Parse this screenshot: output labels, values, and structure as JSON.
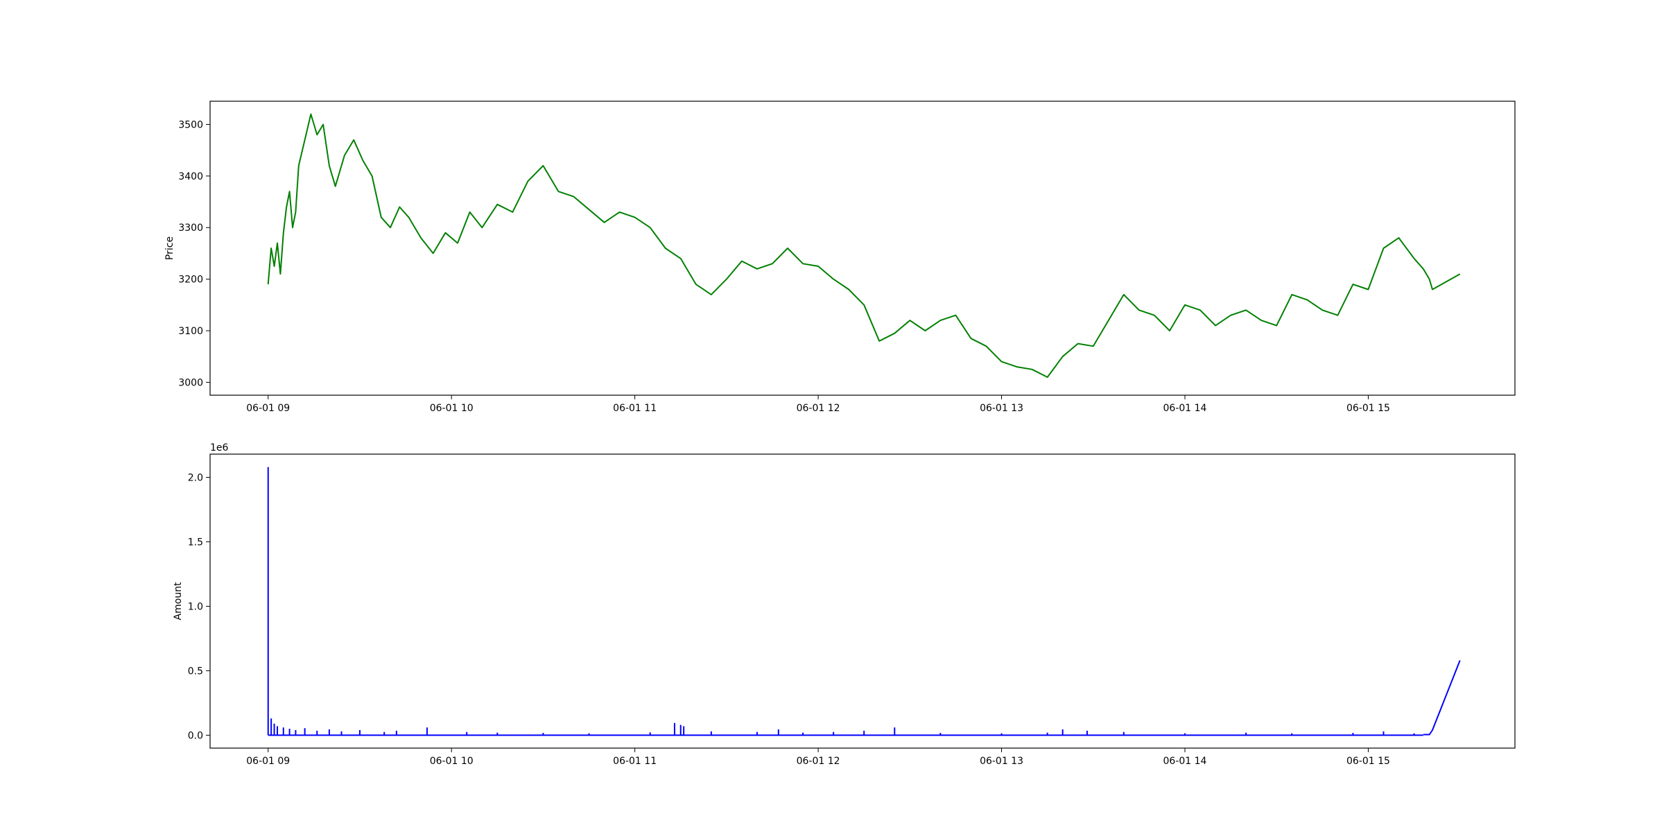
{
  "chart_data": [
    {
      "type": "line",
      "title": "",
      "xlabel": "",
      "ylabel": "Price",
      "x_tick_labels": [
        "06-01 09",
        "06-01 10",
        "06-01 11",
        "06-01 12",
        "06-01 13",
        "06-01 14",
        "06-01 15"
      ],
      "xlim": [
        "06-01 08:41",
        "06-01 15:48"
      ],
      "y_ticks": [
        3000,
        3100,
        3200,
        3300,
        3400,
        3500
      ],
      "y_tick_labels": [
        "3000",
        "3100",
        "3200",
        "3300",
        "3400",
        "3500"
      ],
      "ylim": [
        2975,
        3545
      ],
      "grid": false,
      "series": [
        {
          "color": "#008000",
          "x": [
            "06-01 09:00",
            "06-01 09:01",
            "06-01 09:02",
            "06-01 09:03",
            "06-01 09:04",
            "06-01 09:05",
            "06-01 09:06",
            "06-01 09:07",
            "06-01 09:08",
            "06-01 09:09",
            "06-01 09:10",
            "06-01 09:12",
            "06-01 09:14",
            "06-01 09:16",
            "06-01 09:18",
            "06-01 09:20",
            "06-01 09:22",
            "06-01 09:25",
            "06-01 09:28",
            "06-01 09:31",
            "06-01 09:34",
            "06-01 09:37",
            "06-01 09:40",
            "06-01 09:43",
            "06-01 09:46",
            "06-01 09:50",
            "06-01 09:54",
            "06-01 09:58",
            "06-01 10:02",
            "06-01 10:06",
            "06-01 10:10",
            "06-01 10:15",
            "06-01 10:20",
            "06-01 10:25",
            "06-01 10:30",
            "06-01 10:35",
            "06-01 10:40",
            "06-01 10:45",
            "06-01 10:50",
            "06-01 10:55",
            "06-01 11:00",
            "06-01 11:05",
            "06-01 11:10",
            "06-01 11:15",
            "06-01 11:20",
            "06-01 11:25",
            "06-01 11:30",
            "06-01 11:35",
            "06-01 11:40",
            "06-01 11:45",
            "06-01 11:50",
            "06-01 11:55",
            "06-01 12:00",
            "06-01 12:05",
            "06-01 12:10",
            "06-01 12:15",
            "06-01 12:20",
            "06-01 12:25",
            "06-01 12:30",
            "06-01 12:35",
            "06-01 12:40",
            "06-01 12:45",
            "06-01 12:50",
            "06-01 12:55",
            "06-01 13:00",
            "06-01 13:05",
            "06-01 13:10",
            "06-01 13:15",
            "06-01 13:20",
            "06-01 13:25",
            "06-01 13:30",
            "06-01 13:35",
            "06-01 13:40",
            "06-01 13:45",
            "06-01 13:50",
            "06-01 13:55",
            "06-01 14:00",
            "06-01 14:05",
            "06-01 14:10",
            "06-01 14:15",
            "06-01 14:20",
            "06-01 14:25",
            "06-01 14:30",
            "06-01 14:35",
            "06-01 14:40",
            "06-01 14:45",
            "06-01 14:50",
            "06-01 14:55",
            "06-01 15:00",
            "06-01 15:05",
            "06-01 15:10",
            "06-01 15:15",
            "06-01 15:18",
            "06-01 15:20",
            "06-01 15:21",
            "06-01 15:30"
          ],
          "y": [
            3190,
            3260,
            3225,
            3270,
            3210,
            3290,
            3340,
            3370,
            3300,
            3330,
            3420,
            3470,
            3520,
            3480,
            3500,
            3420,
            3380,
            3440,
            3470,
            3430,
            3400,
            3320,
            3300,
            3340,
            3320,
            3280,
            3250,
            3290,
            3270,
            3330,
            3300,
            3345,
            3330,
            3390,
            3420,
            3370,
            3360,
            3335,
            3310,
            3330,
            3320,
            3300,
            3260,
            3240,
            3190,
            3170,
            3200,
            3235,
            3220,
            3230,
            3260,
            3230,
            3225,
            3200,
            3180,
            3150,
            3080,
            3095,
            3120,
            3100,
            3120,
            3130,
            3085,
            3070,
            3040,
            3030,
            3025,
            3010,
            3050,
            3075,
            3070,
            3120,
            3170,
            3140,
            3130,
            3100,
            3150,
            3140,
            3110,
            3130,
            3140,
            3120,
            3110,
            3170,
            3160,
            3140,
            3130,
            3190,
            3180,
            3260,
            3280,
            3240,
            3220,
            3200,
            3180,
            3210
          ]
        }
      ]
    },
    {
      "type": "area",
      "title": "",
      "xlabel": "",
      "ylabel": "Amount",
      "offset_text": "1e6",
      "x_tick_labels": [
        "06-01 09",
        "06-01 10",
        "06-01 11",
        "06-01 12",
        "06-01 13",
        "06-01 14",
        "06-01 15"
      ],
      "xlim": [
        "06-01 08:41",
        "06-01 15:48"
      ],
      "y_ticks": [
        0.0,
        0.5,
        1.0,
        1.5,
        2.0
      ],
      "y_tick_labels": [
        "0.0",
        "0.5",
        "1.0",
        "1.5",
        "2.0"
      ],
      "ylim": [
        -100000,
        2180000
      ],
      "grid": false,
      "series": [
        {
          "color": "#0000ff",
          "spikes": [
            [
              "06-01 09:00",
              2080000
            ],
            [
              "06-01 09:01",
              130000
            ],
            [
              "06-01 09:02",
              90000
            ],
            [
              "06-01 09:03",
              70000
            ],
            [
              "06-01 09:05",
              60000
            ],
            [
              "06-01 09:07",
              50000
            ],
            [
              "06-01 09:09",
              40000
            ],
            [
              "06-01 09:12",
              55000
            ],
            [
              "06-01 09:16",
              35000
            ],
            [
              "06-01 09:20",
              45000
            ],
            [
              "06-01 09:24",
              30000
            ],
            [
              "06-01 09:30",
              40000
            ],
            [
              "06-01 09:38",
              25000
            ],
            [
              "06-01 09:42",
              35000
            ],
            [
              "06-01 09:52",
              60000
            ],
            [
              "06-01 10:05",
              25000
            ],
            [
              "06-01 10:15",
              20000
            ],
            [
              "06-01 10:30",
              18000
            ],
            [
              "06-01 10:45",
              15000
            ],
            [
              "06-01 11:05",
              22000
            ],
            [
              "06-01 11:13",
              95000
            ],
            [
              "06-01 11:15",
              80000
            ],
            [
              "06-01 11:16",
              70000
            ],
            [
              "06-01 11:25",
              30000
            ],
            [
              "06-01 11:40",
              25000
            ],
            [
              "06-01 11:47",
              45000
            ],
            [
              "06-01 11:55",
              20000
            ],
            [
              "06-01 12:05",
              25000
            ],
            [
              "06-01 12:15",
              35000
            ],
            [
              "06-01 12:25",
              60000
            ],
            [
              "06-01 12:40",
              18000
            ],
            [
              "06-01 13:00",
              15000
            ],
            [
              "06-01 13:15",
              20000
            ],
            [
              "06-01 13:20",
              45000
            ],
            [
              "06-01 13:28",
              35000
            ],
            [
              "06-01 13:40",
              25000
            ],
            [
              "06-01 14:00",
              15000
            ],
            [
              "06-01 14:20",
              20000
            ],
            [
              "06-01 14:35",
              15000
            ],
            [
              "06-01 14:55",
              18000
            ],
            [
              "06-01 15:05",
              30000
            ],
            [
              "06-01 15:15",
              15000
            ]
          ],
          "tail": [
            [
              "06-01 15:18",
              5000
            ],
            [
              "06-01 15:20",
              5000
            ],
            [
              "06-01 15:21",
              40000
            ],
            [
              "06-01 15:30",
              580000
            ]
          ]
        }
      ]
    }
  ]
}
